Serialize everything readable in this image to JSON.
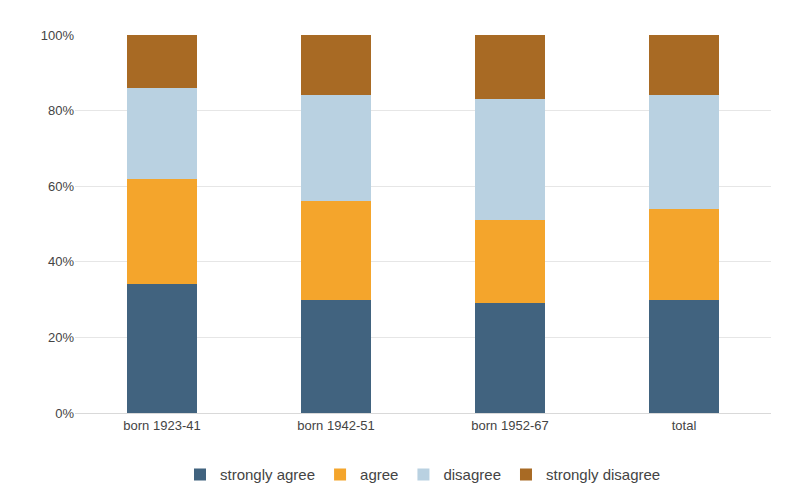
{
  "chart_data": {
    "type": "bar",
    "stacked": true,
    "categories": [
      "born 1923-41",
      "born 1942-51",
      "born 1952-67",
      "total"
    ],
    "series": [
      {
        "name": "strongly agree",
        "color": "#41637f",
        "values": [
          34,
          30,
          29,
          30
        ]
      },
      {
        "name": "agree",
        "color": "#f4a52c",
        "values": [
          28,
          26,
          22,
          24
        ]
      },
      {
        "name": "disagree",
        "color": "#b9d1e1",
        "values": [
          24,
          28,
          32,
          30
        ]
      },
      {
        "name": "strongly disagree",
        "color": "#a86a24",
        "values": [
          14,
          16,
          17,
          16
        ]
      }
    ],
    "ylim": [
      0,
      100
    ],
    "yticks": [
      {
        "value": 0,
        "label": "0%"
      },
      {
        "value": 20,
        "label": "20%"
      },
      {
        "value": 40,
        "label": "40%"
      },
      {
        "value": 60,
        "label": "60%"
      },
      {
        "value": 80,
        "label": "80%"
      },
      {
        "value": 100,
        "label": "100%"
      }
    ],
    "grid": true,
    "legend": "bottom"
  }
}
